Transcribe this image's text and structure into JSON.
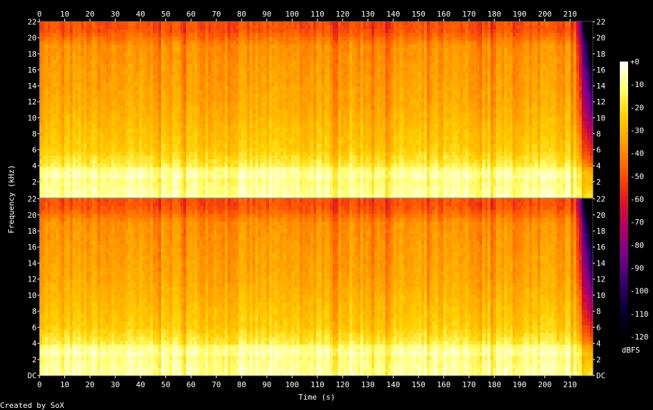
{
  "chart_data": {
    "type": "heatmap",
    "title": "",
    "xlabel": "Time (s)",
    "ylabel": "Frequency (kHz)",
    "colorbar_label": "dBFS",
    "footer": "Created by SoX",
    "xlim": [
      0,
      219
    ],
    "x_ticks": [
      0,
      10,
      20,
      30,
      40,
      50,
      60,
      70,
      80,
      90,
      100,
      110,
      120,
      130,
      140,
      150,
      160,
      170,
      180,
      190,
      200,
      210
    ],
    "ylim_khz": [
      0,
      22.05
    ],
    "y_ticks": [
      "DC",
      "2",
      "4",
      "6",
      "8",
      "10",
      "12",
      "14",
      "16",
      "18",
      "20",
      "22"
    ],
    "y_tick_values": [
      0,
      2,
      4,
      6,
      8,
      10,
      12,
      14,
      16,
      18,
      20,
      22
    ],
    "colorbar_ticks": [
      "+0",
      "-10",
      "-20",
      "-30",
      "-40",
      "-50",
      "-60",
      "-70",
      "-80",
      "-90",
      "-100",
      "-110",
      "-120"
    ],
    "colorbar_range_dbfs": [
      -120,
      0
    ],
    "series": [
      {
        "channel": 1,
        "fade_out_start_s": 212
      },
      {
        "channel": 2,
        "fade_out_start_s": 212
      }
    ],
    "level_profile_dbfs": [
      {
        "freq_khz": 0.5,
        "level": -8
      },
      {
        "freq_khz": 3,
        "level": -12
      },
      {
        "freq_khz": 6,
        "level": -25
      },
      {
        "freq_khz": 12,
        "level": -33
      },
      {
        "freq_khz": 19,
        "level": -38
      },
      {
        "freq_khz": 21,
        "level": -50
      }
    ],
    "colormap": [
      "#000000",
      "#0a0030",
      "#3a006a",
      "#7a008a",
      "#b00060",
      "#e01a20",
      "#ff5a00",
      "#ff9a00",
      "#ffd000",
      "#ffff70",
      "#ffffff"
    ]
  }
}
